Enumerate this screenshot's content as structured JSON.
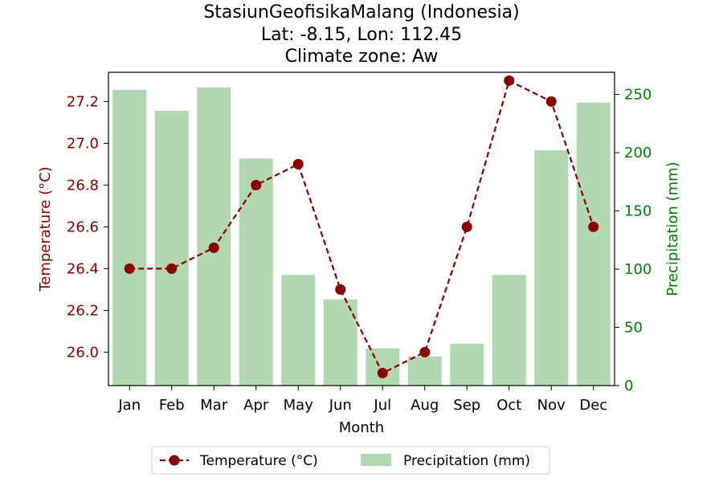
{
  "chart_data": {
    "type": "bar+line",
    "title_lines": [
      "StasiunGeofisikaMalang (Indonesia)",
      "Lat: -8.15, Lon: 112.45",
      "Climate zone: Aw"
    ],
    "categories": [
      "Jan",
      "Feb",
      "Mar",
      "Apr",
      "May",
      "Jun",
      "Jul",
      "Aug",
      "Sep",
      "Oct",
      "Nov",
      "Dec"
    ],
    "xlabel": "Month",
    "temperature": {
      "name": "Temperature (°C)",
      "axis_label": "Temperature (°C)",
      "values": [
        26.4,
        26.4,
        26.5,
        26.8,
        26.9,
        26.3,
        25.9,
        26.0,
        26.6,
        27.3,
        27.2,
        26.6
      ],
      "ylim": [
        25.84,
        27.34
      ],
      "ticks": [
        "26.0",
        "26.2",
        "26.4",
        "26.6",
        "26.8",
        "27.0",
        "27.2"
      ],
      "color": "#8b0000"
    },
    "precipitation": {
      "name": "Precipitation (mm)",
      "axis_label": "Precipitation (mm)",
      "values": [
        254,
        236,
        256,
        195,
        95,
        74,
        32,
        25,
        36,
        95,
        202,
        243
      ],
      "ylim": [
        0,
        269
      ],
      "ticks": [
        "0",
        "50",
        "100",
        "150",
        "200",
        "250"
      ],
      "color": "#b2d8b2",
      "axis_color": "#008000"
    },
    "legend_placement": "bottom-center",
    "grid": false
  }
}
